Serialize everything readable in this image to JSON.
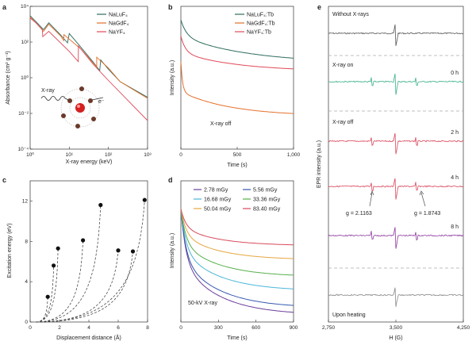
{
  "chart_data": [
    {
      "panel": "a",
      "type": "line",
      "xlabel": "X-ray energy (keV)",
      "ylabel": "Absorbance (cm² g⁻¹)",
      "xscale": "log",
      "yscale": "log",
      "xlim": [
        1,
        1000
      ],
      "ylim": [
        0.0001,
        10000
      ],
      "xticks": [
        "10⁰",
        "10¹",
        "10²",
        "10³"
      ],
      "yticks": [
        "10⁴",
        "10²",
        "10⁰",
        "10⁻²",
        "10⁻⁴"
      ],
      "legend_position": "top-right",
      "series": [
        {
          "name": "NaLuF₄",
          "color": "#2e6b5e",
          "x": [
            1,
            1.4,
            2.2,
            3,
            6,
            9,
            10,
            20,
            40,
            60,
            63.3,
            100,
            200,
            1000
          ],
          "y": [
            3000,
            1400,
            500,
            1200,
            250,
            90,
            300,
            50,
            8,
            2.5,
            10,
            3,
            0.6,
            0.08
          ]
        },
        {
          "name": "NaGdF₄",
          "color": "#e3702a",
          "x": [
            1,
            1.4,
            2.2,
            3,
            6,
            7.2,
            7.3,
            20,
            40,
            50.2,
            50.3,
            100,
            200,
            1000
          ],
          "y": [
            2500,
            1200,
            400,
            1000,
            220,
            120,
            260,
            40,
            7,
            4,
            14,
            3.5,
            0.6,
            0.07
          ]
        },
        {
          "name": "NaYF₄",
          "color": "#e04858",
          "x": [
            1,
            1.4,
            2.05,
            2.1,
            3,
            10,
            17,
            17.1,
            40,
            100,
            1000
          ],
          "y": [
            2200,
            1200,
            500,
            200,
            400,
            30,
            8,
            60,
            6,
            0.7,
            0.004
          ]
        }
      ],
      "inset": {
        "label_xray": "X-ray",
        "label_electron": "e⁻"
      }
    },
    {
      "panel": "b",
      "type": "line",
      "xlabel": "Time (s)",
      "ylabel": "Intensity (a.u.)",
      "xlim": [
        0,
        1000
      ],
      "xticks": [
        "0",
        "500",
        "1,000"
      ],
      "legend_position": "top-right",
      "annotation": "X-ray off",
      "series": [
        {
          "name": "NaLuF₄:Tb",
          "color": "#2e6b5e",
          "y0": 0.86,
          "a1": 0.12,
          "t1": 50,
          "a2": 0.2,
          "t2": 600,
          "yend": 0.58
        },
        {
          "name": "NaGdF₄:Tb",
          "color": "#e3702a",
          "y0": 0.65,
          "a1": 0.22,
          "t1": 15,
          "a2": 0.18,
          "t2": 450,
          "yend": 0.19
        },
        {
          "name": "NaYF₄:Tb",
          "color": "#e04858",
          "y0": 0.74,
          "a1": 0.12,
          "t1": 40,
          "a2": 0.14,
          "t2": 500,
          "yend": 0.52
        }
      ]
    },
    {
      "panel": "c",
      "type": "scatter",
      "xlabel": "Displacement distance (Å)",
      "ylabel": "Excitation energy (eV)",
      "xlim": [
        0,
        8
      ],
      "ylim": [
        0,
        14
      ],
      "xticks": [
        "0",
        "2",
        "4",
        "6",
        "8"
      ],
      "yticks": [
        "0",
        "4",
        "8",
        "12"
      ],
      "points": [
        {
          "x": 1.2,
          "y": 2.5
        },
        {
          "x": 1.6,
          "y": 5.6
        },
        {
          "x": 1.9,
          "y": 7.3
        },
        {
          "x": 3.6,
          "y": 8.1
        },
        {
          "x": 4.8,
          "y": 11.6
        },
        {
          "x": 6.0,
          "y": 7.1
        },
        {
          "x": 7.0,
          "y": 7.0
        },
        {
          "x": 7.8,
          "y": 12.1
        }
      ],
      "curve_start_x": 0.4
    },
    {
      "panel": "d",
      "type": "line",
      "xlabel": "Time (s)",
      "ylabel": "Intensity (a.u.)",
      "xlim": [
        0,
        900
      ],
      "xticks": [
        "0",
        "300",
        "600",
        "900"
      ],
      "annotation": "50-kV X-ray",
      "legend_position": "top-right",
      "series": [
        {
          "name": "2.78 mGy",
          "color": "#6a3d9a",
          "yend": 0.05
        },
        {
          "name": "5.56 mGy",
          "color": "#3557b0",
          "yend": 0.1
        },
        {
          "name": "16.68 mGy",
          "color": "#49b6d8",
          "yend": 0.22
        },
        {
          "name": "33.36 mGy",
          "color": "#55b04a",
          "yend": 0.32
        },
        {
          "name": "50.04 mGy",
          "color": "#e6a640",
          "yend": 0.44
        },
        {
          "name": "83.40 mGy",
          "color": "#d84a5a",
          "yend": 0.54
        }
      ]
    },
    {
      "panel": "e",
      "type": "line",
      "xlabel": "H (G)",
      "ylabel": "EPR intensity (a.u.)",
      "xlim": [
        2750,
        4250
      ],
      "xticks": [
        "2,750",
        "3,500",
        "4,250"
      ],
      "labels": {
        "top": "Without X-rays",
        "xray_on": "X-ray on",
        "xray_off": "X-ray off",
        "bottom": "Upon heating",
        "g1": "g = 2.1163",
        "g2": "g = 1.8743"
      },
      "traces": [
        {
          "time": "",
          "color": "#555555"
        },
        {
          "time": "0 h",
          "color": "#3aaf8a"
        },
        {
          "time": "2 h",
          "color": "#d9465a"
        },
        {
          "time": "4 h",
          "color": "#d9465a"
        },
        {
          "time": "8 h",
          "color": "#8e3aa0"
        },
        {
          "time": "",
          "color": "#888888"
        }
      ]
    }
  ]
}
